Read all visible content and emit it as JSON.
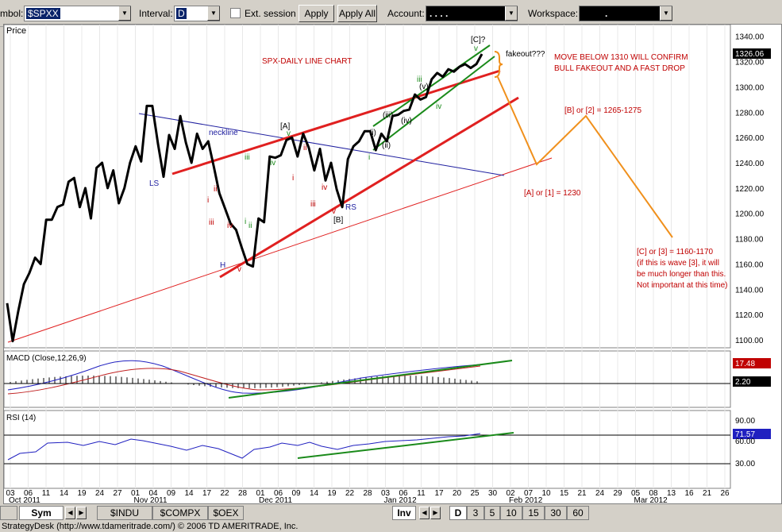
{
  "toolbar": {
    "symbol_label": "mbol:",
    "symbol_value": "$SPXX",
    "interval_label": "Interval:",
    "interval_value": "D",
    "ext_session_label": "Ext. session",
    "apply_label": "Apply",
    "apply_all_label": "Apply All",
    "account_label": "Account:",
    "account_value": ".   .   .   .",
    "workspace_label": "Workspace:",
    "workspace_value": "."
  },
  "panes": {
    "price_label": "Price",
    "macd_label": "MACD (Close,12,26,9)",
    "rsi_label": "RSI (14)"
  },
  "price_axis": {
    "ticks": [
      "1340.00",
      "1320.00",
      "1300.00",
      "1280.00",
      "1260.00",
      "1240.00",
      "1220.00",
      "1200.00",
      "1180.00",
      "1160.00",
      "1140.00",
      "1120.00",
      "1100.00"
    ],
    "tick_values": [
      1340,
      1320,
      1300,
      1280,
      1260,
      1240,
      1220,
      1200,
      1180,
      1160,
      1140,
      1120,
      1100
    ],
    "last_value": "1326.06",
    "ylim": [
      1095,
      1348
    ]
  },
  "macd_axis": {
    "value1": "17.48",
    "value2": "2.20"
  },
  "rsi_axis": {
    "ticks": [
      "90.00",
      "71.57",
      "60.00",
      "30.00"
    ],
    "current": "71.57"
  },
  "date_axis": {
    "days": [
      "03",
      "06",
      "11",
      "14",
      "19",
      "24",
      "27",
      "01",
      "04",
      "09",
      "14",
      "17",
      "22",
      "28",
      "01",
      "06",
      "09",
      "14",
      "19",
      "22",
      "28",
      "03",
      "06",
      "11",
      "17",
      "20",
      "25",
      "30",
      "02",
      "07",
      "10",
      "15",
      "21",
      "24",
      "29",
      "05",
      "08",
      "13",
      "16",
      "21",
      "26"
    ],
    "months": [
      "Oct 2011",
      "Nov 2011",
      "Dec 2011",
      "Jan 2012",
      "Feb 2012",
      "Mar 2012"
    ]
  },
  "chart_data": {
    "type": "line",
    "title": "SPX-DAILY LINE CHART",
    "series": [
      {
        "values": [
          1129,
          1099,
          1123,
          1144,
          1153,
          1165,
          1160,
          1195,
          1195,
          1205,
          1207,
          1225,
          1228,
          1205,
          1220,
          1196,
          1236,
          1240,
          1220,
          1234,
          1208,
          1220,
          1240,
          1253,
          1241,
          1285,
          1285,
          1255,
          1229,
          1262,
          1251,
          1277,
          1256,
          1240,
          1263,
          1251,
          1257,
          1237,
          1216,
          1204,
          1192,
          1187,
          1173,
          1160,
          1158,
          1196,
          1193,
          1245,
          1244,
          1246,
          1258,
          1260,
          1245,
          1263,
          1252,
          1234,
          1251,
          1226,
          1240,
          1219,
          1205,
          1243,
          1253,
          1257,
          1265,
          1265,
          1250,
          1263,
          1257,
          1277,
          1278,
          1281,
          1282,
          1294,
          1290,
          1292,
          1306,
          1311,
          1308,
          1314,
          1312,
          1316,
          1318,
          1315,
          1318,
          1326
        ]
      }
    ]
  },
  "annotations": {
    "neckline": "neckline",
    "ls": "LS",
    "h": "H",
    "rs": "RS",
    "a_top": "[A]",
    "b_bottom": "[B]",
    "c_top": "[C]?",
    "fakeout": "fakeout???",
    "confirm_line1": "MOVE BELOW 1310 WILL CONFIRM",
    "confirm_line2": "BULL FAKEOUT AND A FAST DROP",
    "b_or_2": "[B] or [2] = 1265-1275",
    "a_or_1": "[A] or [1] = 1230",
    "c_or_3_1": "[C] or [3] = 1160-1170",
    "c_or_3_2": "(if this is wave [3], it will",
    "c_or_3_3": "be much longer than this.",
    "c_or_3_4": "Not important at this time)",
    "w_i": "i",
    "w_ii": "ii",
    "w_iii": "iii",
    "w_iv": "iv",
    "w_v": "v",
    "sw_i": "(i)",
    "sw_ii": "(ii)",
    "sw_iii": "(iii)",
    "sw_iv": "(iv)",
    "sw_v": "(v)"
  },
  "bottom_tabs": {
    "sym": "Sym",
    "tabs": [
      "$INDU",
      "$COMPX",
      "$OEX"
    ],
    "inv": "Inv",
    "intervals": [
      "D",
      "3",
      "5",
      "10",
      "15",
      "30",
      "60"
    ]
  },
  "status": "StrategyDesk (http://www.tdameritrade.com/) © 2006 TD AMERITRADE, Inc.",
  "colors": {
    "price_line": "#000000",
    "trend_red": "#e02020",
    "channel_green": "#1a8a1a",
    "projection": "#f0901c",
    "neckline": "#2020a0",
    "annot_red": "#c00000"
  }
}
